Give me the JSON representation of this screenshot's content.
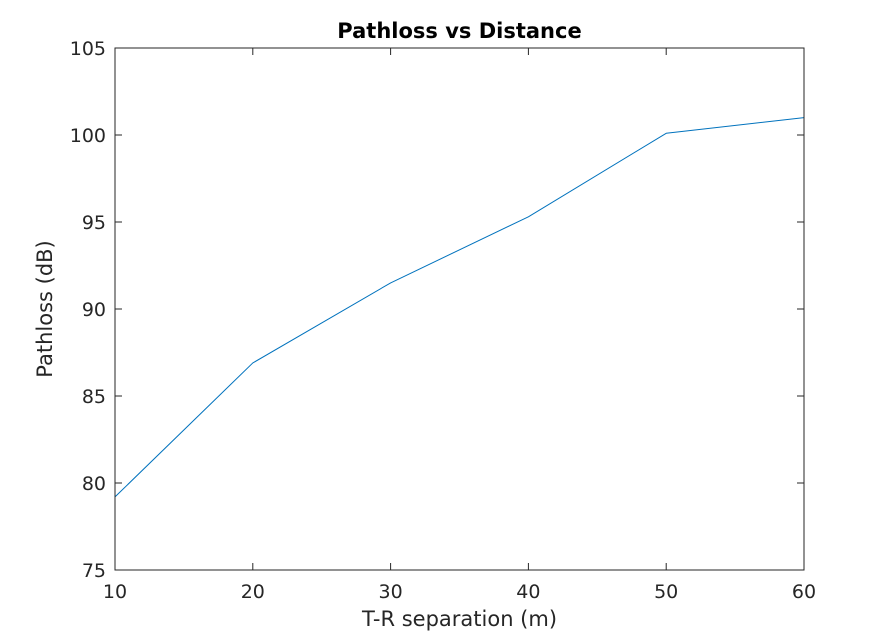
{
  "chart_data": {
    "type": "line",
    "title": "Pathloss vs Distance",
    "xlabel": "T-R separation (m)",
    "ylabel": "Pathloss (dB)",
    "xlim": [
      10,
      60
    ],
    "ylim": [
      75,
      105
    ],
    "xticks": [
      "10",
      "20",
      "30",
      "40",
      "50",
      "60"
    ],
    "yticks": [
      "75",
      "80",
      "85",
      "90",
      "95",
      "100",
      "105"
    ],
    "grid": false,
    "series": [
      {
        "color": "#0072BD",
        "x": [
          10,
          20,
          30,
          40,
          50,
          60
        ],
        "y": [
          79.2,
          86.9,
          91.5,
          95.3,
          100.1,
          101
        ]
      }
    ]
  }
}
